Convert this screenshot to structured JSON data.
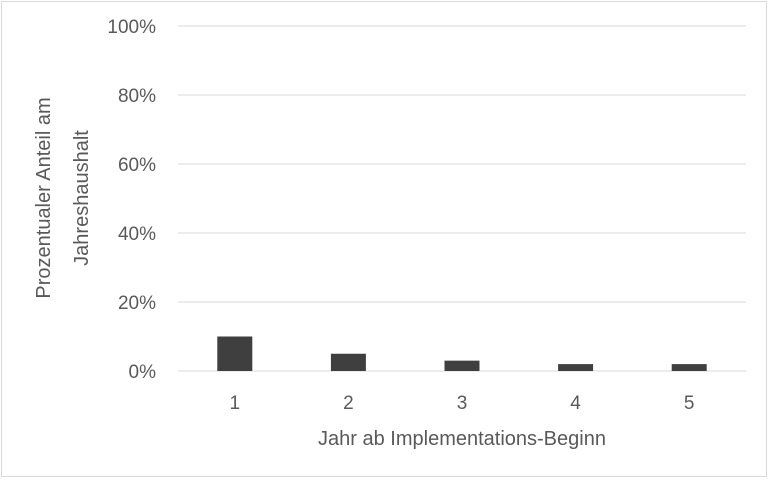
{
  "chart_data": {
    "type": "bar",
    "categories": [
      "1",
      "2",
      "3",
      "4",
      "5"
    ],
    "values": [
      10,
      5,
      3,
      2,
      2
    ],
    "xlabel": "Jahr ab Implementations-Beginn",
    "ylabel_lines": [
      "Prozentualer Anteil am",
      "Jahreshaushalt"
    ],
    "ylim": [
      0,
      100
    ],
    "yticks": [
      0,
      20,
      40,
      60,
      80,
      100
    ],
    "ytick_labels": [
      "0%",
      "20%",
      "40%",
      "60%",
      "80%",
      "100%"
    ],
    "grid": true,
    "legend": "none",
    "colors": {
      "bar": "#3f3f3f",
      "grid": "#d9d9d9",
      "text": "#595959"
    }
  }
}
